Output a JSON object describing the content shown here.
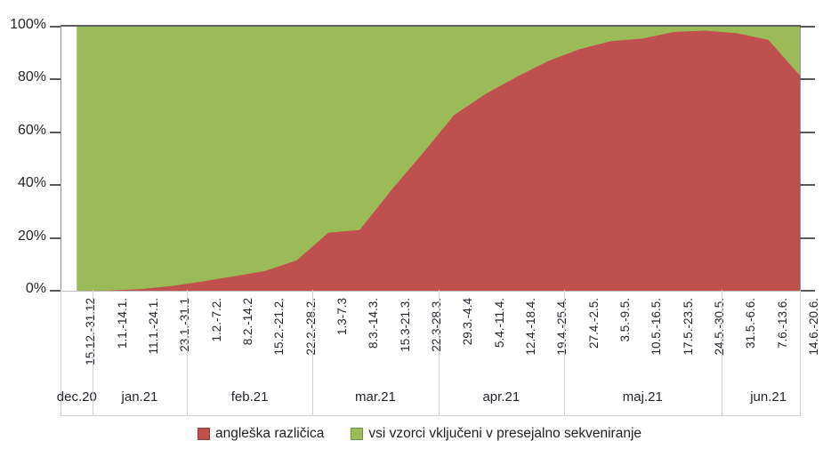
{
  "chart_data": {
    "type": "area",
    "subtype": "percent-stacked",
    "title": "",
    "xlabel": "",
    "ylabel": "",
    "y_axis": {
      "tick_labels": [
        "0%",
        "20%",
        "40%",
        "60%",
        "80%",
        "100%"
      ],
      "min": 0,
      "max": 100,
      "grid": false
    },
    "legend_position": "bottom",
    "categories": [
      "15.12.-31.12",
      "1.1.-14.1.",
      "11.1.-24.1.",
      "23.1.-31.1",
      "1.2.-7.2.",
      "8.2.-14.2",
      "15.2.-21.2.",
      "22.2.-28.2.",
      "1.3-7.3",
      "8.3.-14.3.",
      "15.3-21.3.",
      "22.3-28.3.",
      "29.3.-4.4",
      "5.4.-11.4.",
      "12.4.-18.4.",
      "19.4.-25.4.",
      "27.4.-2.5.",
      "3.5.-9.5.",
      "10.5.-16.5.",
      "17.5.-23.5.",
      "24.5.-30.5.",
      "31.5.-6.6.",
      "7.6.-13.6.",
      "14.6.-20.6."
    ],
    "month_groups": [
      {
        "label": "dec.20",
        "span": 1
      },
      {
        "label": "jan.21",
        "span": 3
      },
      {
        "label": "feb.21",
        "span": 4
      },
      {
        "label": "mar.21",
        "span": 4
      },
      {
        "label": "apr.21",
        "span": 4
      },
      {
        "label": "maj.21",
        "span": 5
      },
      {
        "label": "jun.21",
        "span": 3
      }
    ],
    "series": [
      {
        "name": "angleška različica",
        "color": "#C0504D",
        "values": [
          0,
          0.1,
          0.6,
          1.8,
          3.5,
          5.5,
          7.5,
          11.5,
          22,
          23,
          38,
          52,
          66.5,
          74.5,
          81,
          87,
          91.5,
          94.5,
          95.5,
          98,
          98.5,
          97.5,
          95,
          81.5
        ]
      },
      {
        "name": "vsi vzorci vključeni v presejalno sekveniranje",
        "color": "#9BBB59",
        "values": [
          100,
          99.9,
          99.4,
          98.2,
          96.5,
          94.5,
          92.5,
          88.5,
          78,
          77,
          62,
          48,
          33.5,
          25.5,
          19,
          13,
          8.5,
          5.5,
          4.5,
          2,
          1.5,
          2.5,
          5,
          18.5
        ]
      }
    ]
  }
}
